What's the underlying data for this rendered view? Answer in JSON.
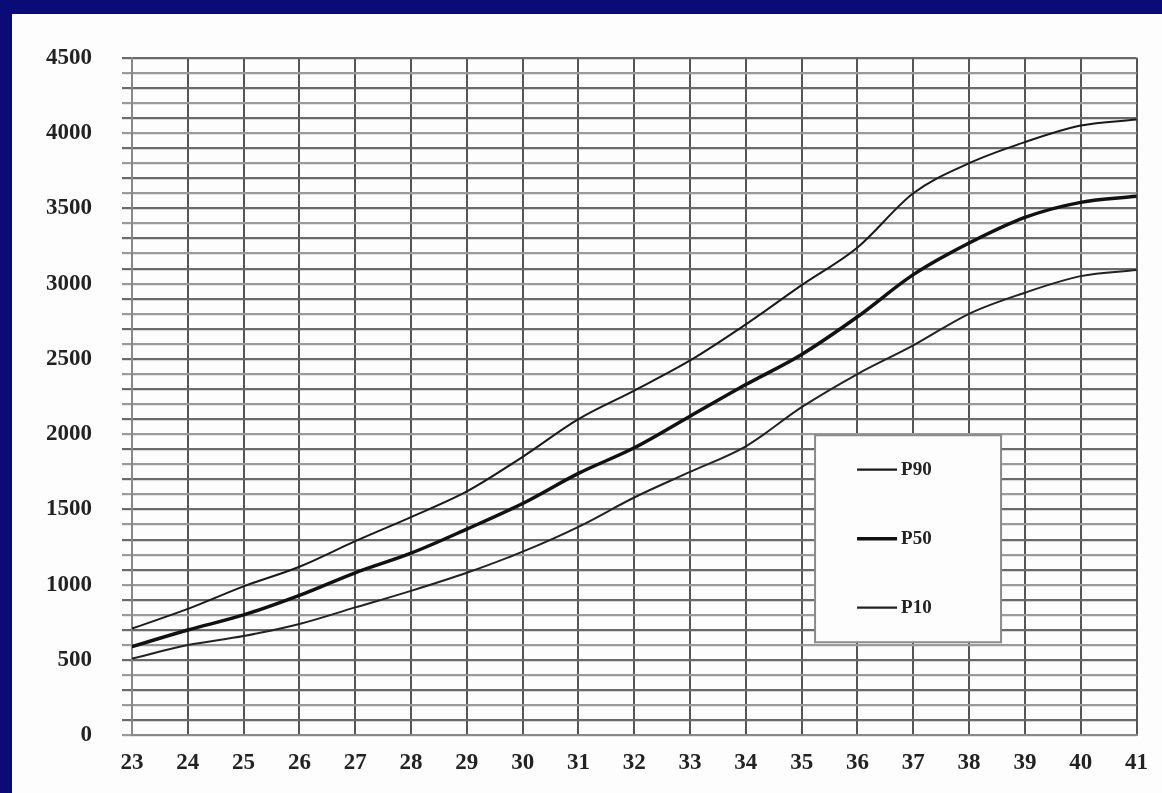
{
  "chart_data": {
    "type": "line",
    "x": [
      23,
      24,
      25,
      26,
      27,
      28,
      29,
      30,
      31,
      32,
      33,
      34,
      35,
      36,
      37,
      38,
      39,
      40,
      41
    ],
    "series": [
      {
        "name": "P90",
        "color": "#1a1a1a",
        "values": [
          710,
          840,
          990,
          1120,
          1290,
          1450,
          1620,
          1850,
          2100,
          2290,
          2490,
          2730,
          2990,
          3240,
          3600,
          3800,
          3940,
          4050,
          4090
        ]
      },
      {
        "name": "P50",
        "color": "#111111",
        "values": [
          590,
          700,
          800,
          930,
          1080,
          1210,
          1370,
          1540,
          1740,
          1910,
          2120,
          2330,
          2530,
          2780,
          3060,
          3270,
          3440,
          3540,
          3580
        ]
      },
      {
        "name": "P10",
        "color": "#222222",
        "values": [
          510,
          600,
          660,
          740,
          850,
          960,
          1080,
          1220,
          1385,
          1580,
          1750,
          1920,
          2180,
          2400,
          2590,
          2800,
          2940,
          3050,
          3090
        ]
      }
    ],
    "xlim": [
      23,
      41
    ],
    "xticks": [
      23,
      24,
      25,
      26,
      27,
      28,
      29,
      30,
      31,
      32,
      33,
      34,
      35,
      36,
      37,
      38,
      39,
      40,
      41
    ],
    "ylim": [
      0,
      4500
    ],
    "yticks": [
      0,
      {
        "value": 100,
        "label": null
      },
      {
        "value": 200,
        "label": null
      },
      {
        "value": 300,
        "label": null
      },
      {
        "value": 400,
        "label": null
      },
      500,
      {
        "value": 600,
        "label": null
      },
      {
        "value": 700,
        "label": null
      },
      {
        "value": 800,
        "label": null
      },
      {
        "value": 900,
        "label": null
      },
      1000,
      {
        "value": 1100,
        "label": null
      },
      {
        "value": 1200,
        "label": null
      },
      {
        "value": 1300,
        "label": null
      },
      {
        "value": 1400,
        "label": null
      },
      1500,
      {
        "value": 1600,
        "label": null
      },
      {
        "value": 1700,
        "label": null
      },
      {
        "value": 1800,
        "label": null
      },
      {
        "value": 1900,
        "label": null
      },
      2000,
      {
        "value": 2100,
        "label": null
      },
      {
        "value": 2200,
        "label": null
      },
      {
        "value": 2300,
        "label": null
      },
      {
        "value": 2400,
        "label": null
      },
      2500,
      {
        "value": 2600,
        "label": null
      },
      {
        "value": 2700,
        "label": null
      },
      {
        "value": 2800,
        "label": null
      },
      {
        "value": 2900,
        "label": null
      },
      3000,
      {
        "value": 3100,
        "label": null
      },
      {
        "value": 3200,
        "label": null
      },
      {
        "value": 3300,
        "label": null
      },
      {
        "value": 3400,
        "label": null
      },
      3500,
      {
        "value": 3600,
        "label": null
      },
      {
        "value": 3700,
        "label": null
      },
      {
        "value": 3800,
        "label": null
      },
      {
        "value": 3900,
        "label": null
      },
      4000,
      {
        "value": 4100,
        "label": null
      },
      {
        "value": 4200,
        "label": null
      },
      {
        "value": 4300,
        "label": null
      },
      {
        "value": 4400,
        "label": null
      },
      4500
    ],
    "grid": true,
    "legend": "right",
    "marker": "none",
    "line_style": "solid"
  }
}
